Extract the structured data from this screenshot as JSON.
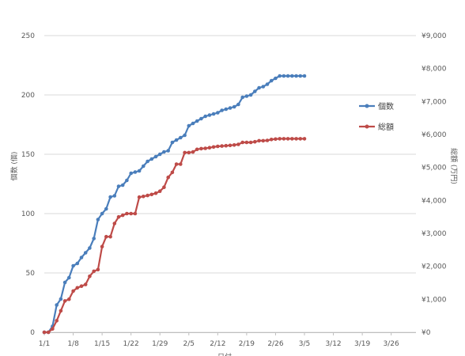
{
  "chart_data": {
    "type": "line",
    "x_axis": {
      "label": "日付",
      "ticks": [
        "1/1",
        "1/8",
        "1/15",
        "1/22",
        "1/29",
        "2/5",
        "2/12",
        "2/19",
        "2/26",
        "3/5",
        "3/12",
        "3/19",
        "3/26"
      ],
      "range_days": [
        0,
        90
      ]
    },
    "y_axis_left": {
      "label": "個数 (個)",
      "range": [
        0,
        250
      ],
      "ticks": [
        "0",
        "50",
        "100",
        "150",
        "200",
        "250"
      ]
    },
    "y_axis_right": {
      "label": "総額 (万円)",
      "range": [
        0,
        9000
      ],
      "ticks": [
        "¥0",
        "¥1,000",
        "¥2,000",
        "¥3,000",
        "¥4,000",
        "¥5,000",
        "¥6,000",
        "¥7,000",
        "¥8,000",
        "¥9,000"
      ]
    },
    "grid": true,
    "legend_position": "right",
    "series": [
      {
        "name": "個数",
        "axis": "left",
        "color": "#4a7ebb",
        "x": [
          0,
          1,
          2,
          3,
          4,
          5,
          6,
          7,
          8,
          9,
          10,
          11,
          12,
          13,
          14,
          15,
          16,
          17,
          18,
          19,
          20,
          21,
          22,
          23,
          24,
          25,
          26,
          27,
          28,
          29,
          30,
          31,
          32,
          33,
          34,
          35,
          36,
          37,
          38,
          39,
          40,
          41,
          42,
          43,
          44,
          45,
          46,
          47,
          48,
          49,
          50,
          51,
          52,
          53,
          54,
          55,
          56,
          57,
          58,
          59,
          60,
          61,
          62,
          63
        ],
        "y": [
          0,
          0,
          5,
          23,
          28,
          42,
          46,
          56,
          58,
          63,
          67,
          71,
          79,
          95,
          100,
          104,
          114,
          115,
          123,
          124,
          128,
          134,
          135,
          136,
          140,
          144,
          146,
          148,
          150,
          152,
          153,
          160,
          162,
          164,
          166,
          174,
          176,
          178,
          180,
          182,
          183,
          184,
          185,
          187,
          188,
          189,
          190,
          192,
          198,
          199,
          200,
          203,
          206,
          207,
          209,
          212,
          214,
          216,
          216,
          216,
          216,
          216,
          216,
          216
        ]
      },
      {
        "name": "総額",
        "axis": "right",
        "color": "#be4b48",
        "x": [
          0,
          1,
          2,
          3,
          4,
          5,
          6,
          7,
          8,
          9,
          10,
          11,
          12,
          13,
          14,
          15,
          16,
          17,
          18,
          19,
          20,
          21,
          22,
          23,
          24,
          25,
          26,
          27,
          28,
          29,
          30,
          31,
          32,
          33,
          34,
          35,
          36,
          37,
          38,
          39,
          40,
          41,
          42,
          43,
          44,
          45,
          46,
          47,
          48,
          49,
          50,
          51,
          52,
          53,
          54,
          55,
          56,
          57,
          58,
          59,
          60,
          61,
          62,
          63
        ],
        "y": [
          0,
          0,
          100,
          350,
          650,
          950,
          1000,
          1250,
          1350,
          1400,
          1450,
          1700,
          1850,
          1900,
          2600,
          2900,
          2900,
          3300,
          3500,
          3550,
          3600,
          3600,
          3600,
          4100,
          4120,
          4150,
          4180,
          4220,
          4280,
          4400,
          4700,
          4850,
          5100,
          5100,
          5450,
          5450,
          5470,
          5550,
          5570,
          5580,
          5600,
          5620,
          5640,
          5650,
          5660,
          5670,
          5680,
          5700,
          5760,
          5760,
          5760,
          5780,
          5810,
          5810,
          5820,
          5850,
          5860,
          5870,
          5870,
          5870,
          5870,
          5870,
          5870,
          5870
        ]
      }
    ]
  }
}
